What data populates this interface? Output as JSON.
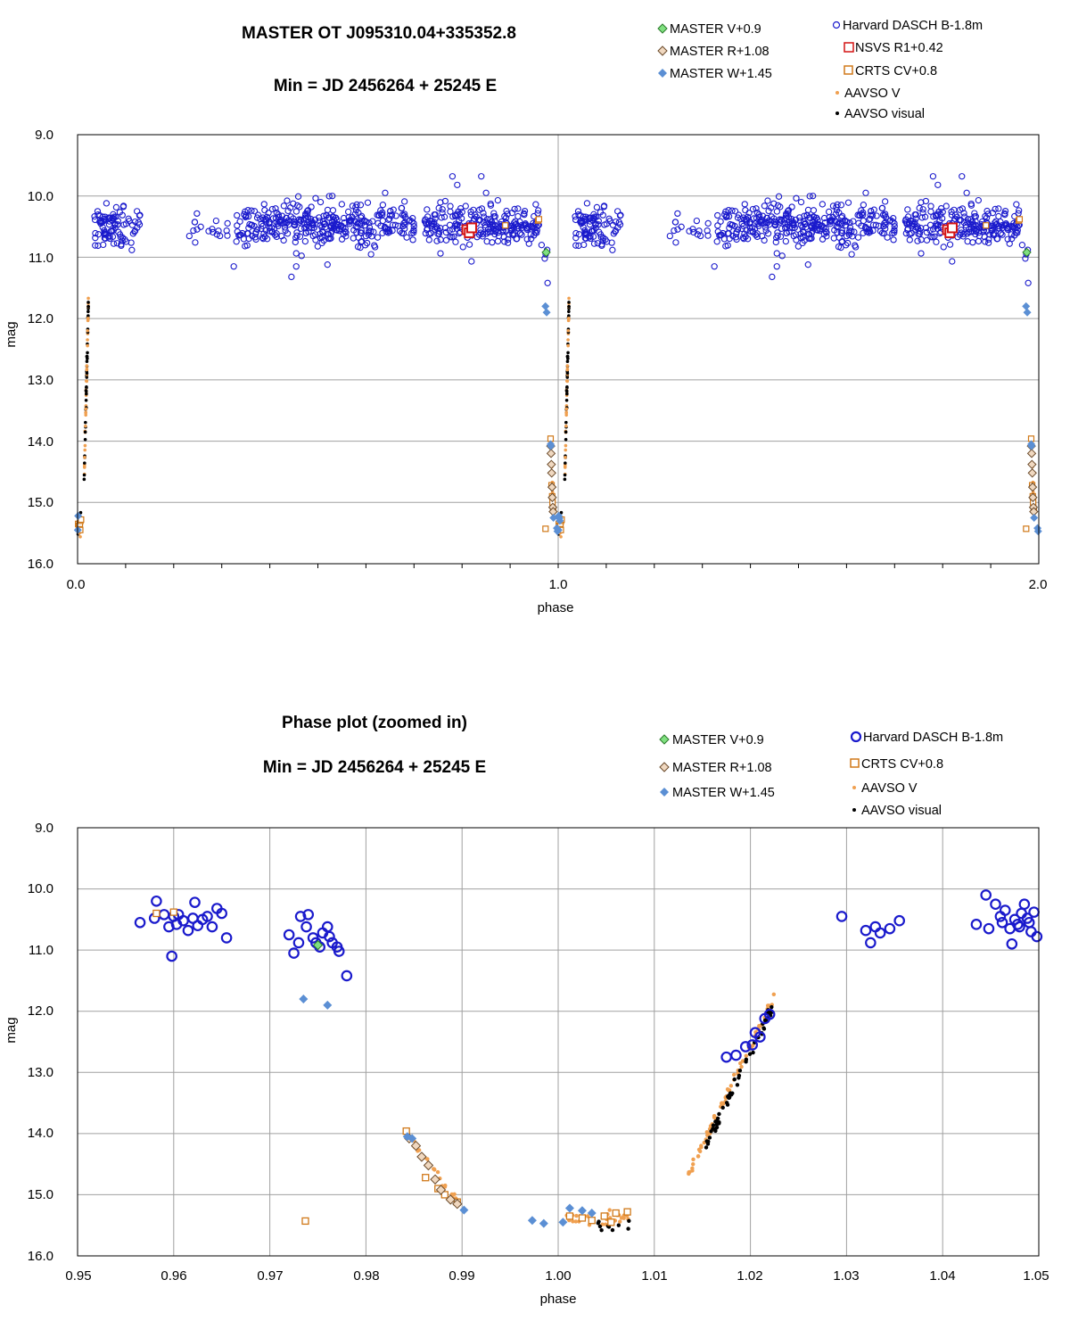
{
  "colors": {
    "dasch": "#1a1acc",
    "nsvs": "#d41414",
    "crts": "#d07818",
    "aavso_v": "#f0a050",
    "aavso_visual": "#000000",
    "master_v_fill": "#80e080",
    "master_v_edge": "#2a7a2a",
    "master_r_fill": "#f0d8c0",
    "master_r_edge": "#6a4a2a",
    "master_w": "#5b8fd4",
    "grid": "#a0a0a0"
  },
  "chart_data": [
    {
      "type": "scatter",
      "title": "MASTER OT J095310.04+335352.8",
      "subtitle": "Min = JD 2456264 + 25245 E",
      "xlabel": "phase",
      "ylabel": "mag",
      "xlim": [
        0.0,
        2.0
      ],
      "ylim": [
        9.0,
        16.0
      ],
      "y_inverted": true,
      "x_ticks": [
        "0.0",
        "1.0",
        "2.0"
      ],
      "y_ticks": [
        "9.0",
        "10.0",
        "11.0",
        "12.0",
        "13.0",
        "14.0",
        "15.0",
        "16.0"
      ],
      "grid": "vertical line at phase 1.0, horizontal lines at each magnitude",
      "legend": [
        {
          "key": "master_v",
          "label": "MASTER V+0.9"
        },
        {
          "key": "master_r",
          "label": "MASTER R+1.08"
        },
        {
          "key": "master_w",
          "label": "MASTER W+1.45"
        },
        {
          "key": "dasch",
          "label": "Harvard DASCH B-1.8m"
        },
        {
          "key": "nsvs",
          "label": "NSVS R1+0.42"
        },
        {
          "key": "crts",
          "label": "CRTS CV+0.8"
        },
        {
          "key": "aavso_v",
          "label": "AAVSO V"
        },
        {
          "key": "aavso_visual",
          "label": "AAVSO visual"
        }
      ],
      "series": {
        "master_v": [
          [
            0.975,
            10.92
          ],
          [
            1.975,
            10.92
          ]
        ],
        "master_r": [
          [
            0.9845,
            14.08
          ],
          [
            0.9852,
            14.2
          ],
          [
            0.9858,
            14.38
          ],
          [
            0.9865,
            14.52
          ],
          [
            0.9872,
            14.75
          ],
          [
            0.9878,
            14.92
          ],
          [
            0.9888,
            15.08
          ],
          [
            0.9895,
            15.15
          ],
          [
            1.9845,
            14.08
          ],
          [
            1.9852,
            14.2
          ],
          [
            1.9858,
            14.38
          ],
          [
            1.9865,
            14.52
          ],
          [
            1.9872,
            14.75
          ],
          [
            1.9878,
            14.92
          ],
          [
            1.9888,
            15.08
          ],
          [
            1.9895,
            15.15
          ]
        ],
        "master_w": [
          [
            0.9735,
            11.8
          ],
          [
            0.976,
            11.9
          ],
          [
            0.9843,
            14.05
          ],
          [
            0.9848,
            14.08
          ],
          [
            0.9902,
            15.25
          ],
          [
            0.9973,
            15.42
          ],
          [
            0.9985,
            15.47
          ],
          [
            1.0005,
            15.45
          ],
          [
            1.0012,
            15.22
          ],
          [
            1.0025,
            15.26
          ],
          [
            1.0035,
            15.3
          ],
          [
            0.0005,
            15.45
          ],
          [
            0.0012,
            15.22
          ],
          [
            1.9735,
            11.8
          ],
          [
            1.976,
            11.9
          ],
          [
            1.9843,
            14.05
          ],
          [
            1.9848,
            14.08
          ],
          [
            1.9902,
            15.25
          ],
          [
            1.9973,
            15.42
          ],
          [
            1.9985,
            15.47
          ]
        ],
        "nsvs": [
          [
            0.81,
            10.55
          ],
          [
            0.815,
            10.6
          ],
          [
            0.82,
            10.52
          ],
          [
            1.81,
            10.55
          ],
          [
            1.815,
            10.6
          ],
          [
            1.82,
            10.52
          ]
        ],
        "crts": [
          [
            0.9582,
            10.4
          ],
          [
            0.9737,
            15.43
          ],
          [
            0.9842,
            13.96
          ],
          [
            0.9862,
            14.72
          ],
          [
            0.9875,
            14.9
          ],
          [
            0.9882,
            15.0
          ],
          [
            0.9895,
            15.12
          ],
          [
            1.0012,
            15.35
          ],
          [
            1.0025,
            15.38
          ],
          [
            1.0035,
            15.42
          ],
          [
            1.0048,
            15.35
          ],
          [
            1.0055,
            15.45
          ],
          [
            1.006,
            15.3
          ],
          [
            1.0072,
            15.28
          ],
          [
            0.0012,
            15.35
          ],
          [
            0.0025,
            15.38
          ],
          [
            0.0035,
            15.42
          ],
          [
            0.0048,
            15.35
          ],
          [
            0.0055,
            15.45
          ],
          [
            0.006,
            15.3
          ],
          [
            0.0072,
            15.28
          ],
          [
            1.9582,
            10.4
          ],
          [
            1.9737,
            15.43
          ],
          [
            1.9842,
            13.96
          ],
          [
            1.9862,
            14.72
          ],
          [
            1.9875,
            14.9
          ],
          [
            1.9882,
            15.0
          ],
          [
            1.9895,
            15.12
          ],
          [
            0.89,
            10.48
          ],
          [
            1.89,
            10.48
          ],
          [
            0.96,
            10.38
          ],
          [
            1.96,
            10.38
          ]
        ]
      }
    },
    {
      "type": "scatter",
      "title": "Phase plot (zoomed in)",
      "subtitle": "Min = JD 2456264 + 25245 E",
      "xlabel": "phase",
      "ylabel": "mag",
      "xlim": [
        0.95,
        1.05
      ],
      "ylim": [
        9.0,
        16.0
      ],
      "y_inverted": true,
      "x_ticks": [
        "0.95",
        "0.96",
        "0.97",
        "0.98",
        "0.99",
        "1.00",
        "1.01",
        "1.02",
        "1.03",
        "1.04",
        "1.05"
      ],
      "y_ticks": [
        "9.0",
        "10.0",
        "11.0",
        "12.0",
        "13.0",
        "14.0",
        "15.0",
        "16.0"
      ],
      "grid": "vertical lines at every 0.01 in phase, horizontal lines at each magnitude",
      "legend": [
        {
          "key": "master_v",
          "label": "MASTER V+0.9"
        },
        {
          "key": "master_r",
          "label": "MASTER R+1.08"
        },
        {
          "key": "master_w",
          "label": "MASTER W+1.45"
        },
        {
          "key": "dasch",
          "label": "Harvard DASCH B-1.8m"
        },
        {
          "key": "crts",
          "label": "CRTS CV+0.8"
        },
        {
          "key": "aavso_v",
          "label": "AAVSO V"
        },
        {
          "key": "aavso_visual",
          "label": "AAVSO visual"
        }
      ],
      "series": {
        "dasch": [
          [
            0.9565,
            10.55
          ],
          [
            0.958,
            10.48
          ],
          [
            0.9582,
            10.2
          ],
          [
            0.959,
            10.42
          ],
          [
            0.9595,
            10.62
          ],
          [
            0.96,
            10.45
          ],
          [
            0.9598,
            11.1
          ],
          [
            0.9603,
            10.58
          ],
          [
            0.9605,
            10.42
          ],
          [
            0.961,
            10.52
          ],
          [
            0.9615,
            10.68
          ],
          [
            0.962,
            10.48
          ],
          [
            0.9622,
            10.22
          ],
          [
            0.9625,
            10.6
          ],
          [
            0.963,
            10.5
          ],
          [
            0.9635,
            10.45
          ],
          [
            0.964,
            10.62
          ],
          [
            0.9645,
            10.32
          ],
          [
            0.965,
            10.4
          ],
          [
            0.9655,
            10.8
          ],
          [
            0.972,
            10.75
          ],
          [
            0.9725,
            11.05
          ],
          [
            0.973,
            10.88
          ],
          [
            0.9732,
            10.45
          ],
          [
            0.9738,
            10.62
          ],
          [
            0.974,
            10.42
          ],
          [
            0.9745,
            10.8
          ],
          [
            0.9748,
            10.88
          ],
          [
            0.9752,
            10.95
          ],
          [
            0.9755,
            10.72
          ],
          [
            0.976,
            10.62
          ],
          [
            0.9762,
            10.78
          ],
          [
            0.9765,
            10.88
          ],
          [
            0.977,
            10.95
          ],
          [
            0.9772,
            11.02
          ],
          [
            0.978,
            11.42
          ],
          [
            1.0175,
            12.75
          ],
          [
            1.0185,
            12.72
          ],
          [
            1.0195,
            12.58
          ],
          [
            1.0202,
            12.55
          ],
          [
            1.0205,
            12.35
          ],
          [
            1.021,
            12.42
          ],
          [
            1.0215,
            12.12
          ],
          [
            1.022,
            12.05
          ],
          [
            1.0295,
            10.45
          ],
          [
            1.032,
            10.68
          ],
          [
            1.0325,
            10.88
          ],
          [
            1.033,
            10.62
          ],
          [
            1.0335,
            10.72
          ],
          [
            1.0345,
            10.65
          ],
          [
            1.0355,
            10.52
          ],
          [
            1.0435,
            10.58
          ],
          [
            1.0445,
            10.1
          ],
          [
            1.0448,
            10.65
          ],
          [
            1.0455,
            10.25
          ],
          [
            1.046,
            10.45
          ],
          [
            1.0462,
            10.55
          ],
          [
            1.0465,
            10.35
          ],
          [
            1.047,
            10.65
          ],
          [
            1.0472,
            10.9
          ],
          [
            1.0475,
            10.5
          ],
          [
            1.0478,
            10.58
          ],
          [
            1.048,
            10.62
          ],
          [
            1.0482,
            10.4
          ],
          [
            1.0485,
            10.25
          ],
          [
            1.0488,
            10.48
          ],
          [
            1.049,
            10.55
          ],
          [
            1.0492,
            10.7
          ],
          [
            1.0495,
            10.38
          ],
          [
            1.0498,
            10.78
          ]
        ]
      }
    }
  ]
}
